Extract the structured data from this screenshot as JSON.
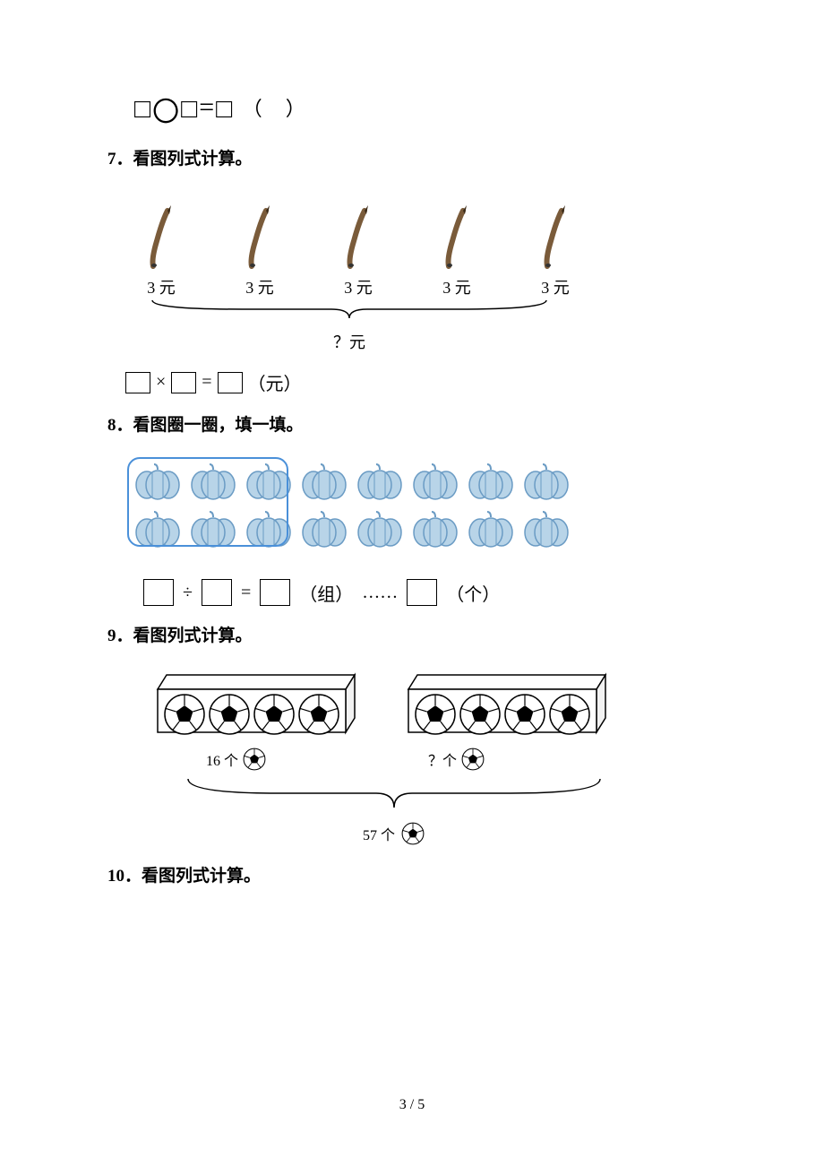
{
  "equation_line": {
    "square": "□",
    "circle": "〇",
    "equals": "=",
    "paren": "（　）"
  },
  "q7": {
    "title": "7．看图列式计算。",
    "pen_price": "3 元",
    "pen_count": 5,
    "brace_label": "？元",
    "eq_op": "×",
    "eq_eq": "=",
    "eq_unit": "（元）"
  },
  "q8": {
    "title": "8．看图圈一圈，填一填。",
    "rows": 2,
    "cols": 8,
    "group_cols": 3,
    "pumpkin_fill": "#b8d4e8",
    "pumpkin_stroke": "#6a9bc4",
    "op_div": "÷",
    "op_eq": "=",
    "unit_group": "（组）",
    "dots": "……",
    "unit_remain": "（个）"
  },
  "q9": {
    "title": "9．看图列式计算。",
    "left_count": "16 个",
    "right_count": "？个",
    "total_count": "57 个"
  },
  "q10": {
    "title": "10．看图列式计算。"
  },
  "page_number": "3 / 5",
  "colors": {
    "text": "#000000",
    "background": "#ffffff",
    "circle_border": "#4a90d9"
  }
}
